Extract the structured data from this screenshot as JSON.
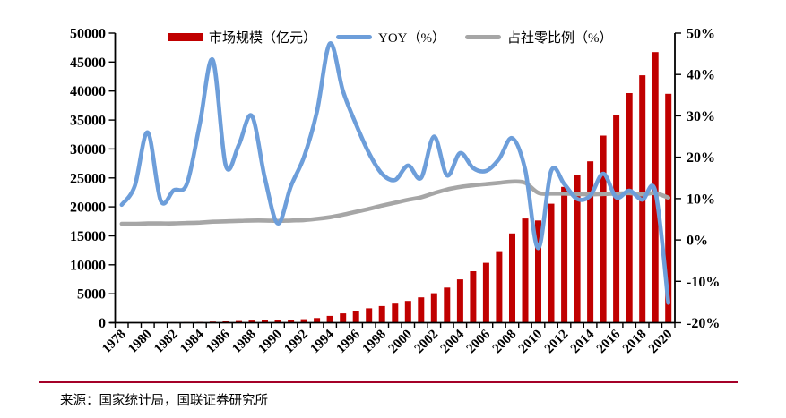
{
  "chart_data": {
    "type": "bar+line combo",
    "title": "",
    "grid": false,
    "legend_position": "top",
    "years": [
      1978,
      1979,
      1980,
      1981,
      1982,
      1983,
      1984,
      1985,
      1986,
      1987,
      1988,
      1989,
      1990,
      1991,
      1992,
      1993,
      1994,
      1995,
      1996,
      1997,
      1998,
      1999,
      2000,
      2001,
      2002,
      2003,
      2004,
      2005,
      2006,
      2007,
      2008,
      2009,
      2010,
      2011,
      2012,
      2013,
      2014,
      2015,
      2016,
      2017,
      2018,
      2019,
      2020
    ],
    "x_tick_labels": [
      "1978",
      "1980",
      "1982",
      "1984",
      "1986",
      "1988",
      "1990",
      "1992",
      "1994",
      "1996",
      "1998",
      "2000",
      "2002",
      "2004",
      "2006",
      "2008",
      "2010",
      "2012",
      "2014",
      "2016",
      "2018",
      "2020"
    ],
    "left_axis": {
      "min": 0,
      "max": 50000,
      "step": 5000,
      "tick_labels": [
        "50000",
        "45000",
        "40000",
        "35000",
        "30000",
        "25000",
        "20000",
        "15000",
        "10000",
        "5000",
        "0"
      ]
    },
    "right_axis": {
      "min": -20,
      "max": 50,
      "step": 10,
      "tick_labels": [
        "50%",
        "40%",
        "30%",
        "20%",
        "10%",
        "0%",
        "-10%",
        "-20%"
      ]
    },
    "series": [
      {
        "name": "市场规模（亿元）",
        "type": "bar",
        "axis": "left",
        "color": "#C00000",
        "values": [
          54.8,
          62,
          78,
          85,
          95,
          109,
          139,
          199,
          235,
          289,
          376,
          433,
          450,
          508,
          610,
          799,
          1179,
          1603,
          2052,
          2483,
          2880,
          3298,
          3753,
          4369,
          5092,
          6066,
          7486,
          8887,
          10345,
          12352,
          15404,
          17998,
          17648,
          20543,
          23448,
          25569,
          27860,
          32310,
          35799,
          39644,
          42716,
          46721,
          39527
        ]
      },
      {
        "name": "YOY（%）",
        "type": "line",
        "axis": "right",
        "color": "#6D9EDA",
        "values": [
          8.5,
          13,
          26,
          9.5,
          12,
          13.5,
          28,
          43.5,
          18,
          23,
          30,
          15,
          4,
          13,
          20,
          31,
          47.5,
          36,
          28,
          21,
          16,
          14.5,
          18,
          15,
          25,
          15.6,
          21,
          17.4,
          16.7,
          19.6,
          24.6,
          17,
          -2,
          16.7,
          13.5,
          9.9,
          10.7,
          16,
          10.3,
          11.9,
          9.7,
          11.7,
          -15.2
        ]
      },
      {
        "name": "占社零比例（%）",
        "type": "line",
        "axis": "right",
        "color": "#A6A6A6",
        "values": [
          3.9,
          3.9,
          4.0,
          4.0,
          4.0,
          4.1,
          4.2,
          4.4,
          4.5,
          4.6,
          4.7,
          4.7,
          4.6,
          4.7,
          4.8,
          5.1,
          5.5,
          6.1,
          6.8,
          7.5,
          8.3,
          9.0,
          9.7,
          10.3,
          11.3,
          12.2,
          12.8,
          13.2,
          13.5,
          13.8,
          14.1,
          13.8,
          11.4,
          11.2,
          11.2,
          11.1,
          11.0,
          11.1,
          11.2,
          11.3,
          11.0,
          11.3,
          10.2
        ]
      }
    ]
  },
  "footer": {
    "source": "来源：国家统计局，国联证券研究所"
  },
  "colors": {
    "bar": "#C00000",
    "yoy_line": "#6D9EDA",
    "share_line": "#A6A6A6",
    "axis": "#000000",
    "divider": "#A40028",
    "text": "#000000"
  }
}
